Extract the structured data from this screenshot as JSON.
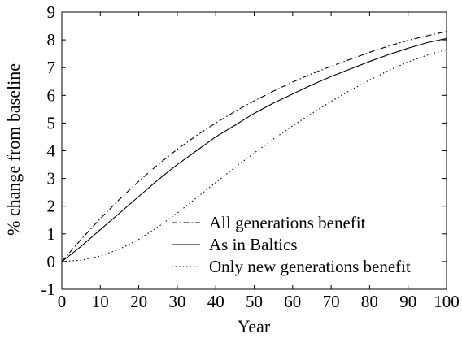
{
  "chart_data": {
    "type": "line",
    "title": "",
    "xlabel": "Year",
    "ylabel": "% change from baseline",
    "xlim": [
      0,
      100
    ],
    "ylim": [
      -1,
      9
    ],
    "xticks": [
      "0",
      "10",
      "20",
      "30",
      "40",
      "50",
      "60",
      "70",
      "80",
      "90",
      "100"
    ],
    "yticks": [
      "-1",
      "0",
      "1",
      "2",
      "3",
      "4",
      "5",
      "6",
      "7",
      "8",
      "9"
    ],
    "grid": false,
    "legend_position": "bottom-right",
    "series": [
      {
        "name": "All generations benefit",
        "style": "dashdot",
        "x": [
          0,
          5,
          10,
          15,
          20,
          25,
          30,
          35,
          40,
          45,
          50,
          55,
          60,
          65,
          70,
          75,
          80,
          85,
          90,
          95,
          100
        ],
        "y": [
          0,
          0.8,
          1.55,
          2.25,
          2.9,
          3.5,
          4.05,
          4.55,
          5.0,
          5.42,
          5.8,
          6.15,
          6.48,
          6.78,
          7.05,
          7.3,
          7.55,
          7.78,
          7.98,
          8.15,
          8.3
        ]
      },
      {
        "name": "As in Baltics",
        "style": "solid",
        "x": [
          0,
          5,
          10,
          15,
          20,
          25,
          30,
          35,
          40,
          45,
          50,
          55,
          60,
          65,
          70,
          75,
          80,
          85,
          90,
          95,
          100
        ],
        "y": [
          0,
          0.55,
          1.15,
          1.75,
          2.35,
          2.95,
          3.5,
          4.0,
          4.5,
          4.92,
          5.35,
          5.72,
          6.05,
          6.38,
          6.68,
          6.95,
          7.22,
          7.47,
          7.7,
          7.9,
          8.05
        ]
      },
      {
        "name": "Only new generations benefit",
        "style": "dotted",
        "x": [
          0,
          5,
          10,
          15,
          20,
          25,
          30,
          35,
          40,
          45,
          50,
          55,
          60,
          65,
          70,
          75,
          80,
          85,
          90,
          95,
          100
        ],
        "y": [
          0,
          0.05,
          0.2,
          0.45,
          0.8,
          1.25,
          1.75,
          2.3,
          2.85,
          3.4,
          3.92,
          4.42,
          4.9,
          5.35,
          5.78,
          6.18,
          6.55,
          6.9,
          7.2,
          7.45,
          7.65
        ]
      }
    ]
  }
}
